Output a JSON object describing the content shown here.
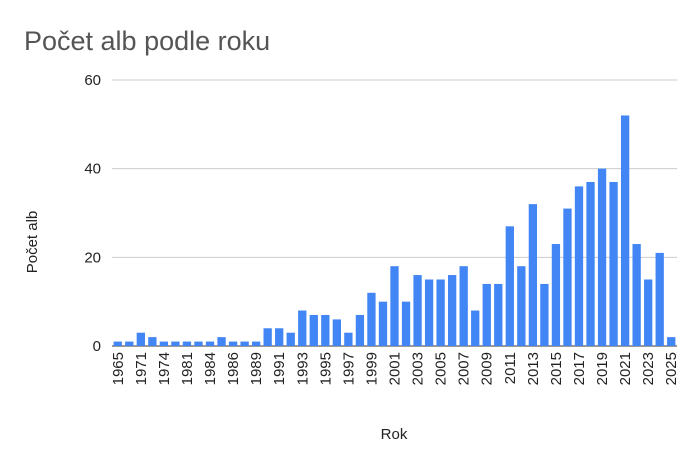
{
  "chart_data": {
    "type": "bar",
    "title": "Počet alb podle roku",
    "x_label": "Rok",
    "y_label": "Počet alb",
    "categories": [
      "1965",
      null,
      "1971",
      null,
      "1974",
      null,
      "1981",
      null,
      "1984",
      null,
      "1986",
      null,
      "1989",
      null,
      "1991",
      null,
      "1993",
      null,
      "1995",
      null,
      "1997",
      null,
      "1999",
      null,
      "2001",
      null,
      "2003",
      null,
      "2005",
      null,
      "2007",
      null,
      "2009",
      null,
      "2011",
      null,
      "2013",
      null,
      "2015",
      null,
      "2017",
      null,
      "2019",
      null,
      "2021",
      null,
      "2023",
      null,
      "2025"
    ],
    "values": [
      1,
      1,
      3,
      2,
      1,
      1,
      1,
      1,
      1,
      2,
      1,
      1,
      1,
      4,
      4,
      3,
      8,
      7,
      7,
      6,
      3,
      7,
      12,
      10,
      18,
      10,
      16,
      15,
      15,
      16,
      18,
      8,
      14,
      14,
      27,
      18,
      32,
      14,
      23,
      31,
      36,
      37,
      40,
      37,
      52,
      23,
      15,
      21,
      2
    ],
    "color": "#4285f4",
    "ylim": [
      0,
      60
    ],
    "yticks": [
      0,
      20,
      40,
      60
    ],
    "grid": true
  }
}
